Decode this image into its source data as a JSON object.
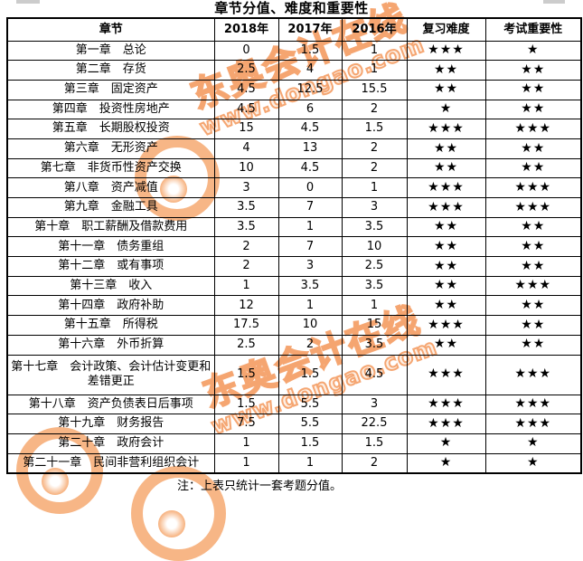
{
  "title": "章节分值、难度和重要性",
  "note": "注：上表只统计一套考题分值。",
  "watermark": {
    "brand": "东奥会计在线",
    "site": "www.dongao.com",
    "color": "#f5a468"
  },
  "table": {
    "headers": [
      "章节",
      "2018年",
      "2017年",
      "2016年",
      "复习难度",
      "考试重要性"
    ],
    "star_char": "★",
    "rows": [
      {
        "chapter": "第一章　总论",
        "y2018": "0",
        "y2017": "1.5",
        "y2016": "1",
        "difficulty": 3,
        "importance": 1
      },
      {
        "chapter": "第二章　存货",
        "y2018": "2.5",
        "y2017": "4",
        "y2016": "1",
        "difficulty": 2,
        "importance": 2
      },
      {
        "chapter": "第三章　固定资产",
        "y2018": "4.5",
        "y2017": "12.5",
        "y2016": "15.5",
        "difficulty": 2,
        "importance": 2
      },
      {
        "chapter": "第四章　投资性房地产",
        "y2018": "4.5",
        "y2017": "6",
        "y2016": "2",
        "difficulty": 1,
        "importance": 2
      },
      {
        "chapter": "第五章　长期股权投资",
        "y2018": "15",
        "y2017": "4.5",
        "y2016": "1.5",
        "difficulty": 3,
        "importance": 3
      },
      {
        "chapter": "第六章　无形资产",
        "y2018": "4",
        "y2017": "13",
        "y2016": "2",
        "difficulty": 2,
        "importance": 2
      },
      {
        "chapter": "第七章　非货币性资产交换",
        "y2018": "10",
        "y2017": "4.5",
        "y2016": "2",
        "difficulty": 2,
        "importance": 2
      },
      {
        "chapter": "第八章　资产减值",
        "y2018": "3",
        "y2017": "0",
        "y2016": "1",
        "difficulty": 3,
        "importance": 3
      },
      {
        "chapter": "第九章　金融工具",
        "y2018": "3.5",
        "y2017": "7",
        "y2016": "3",
        "difficulty": 3,
        "importance": 3
      },
      {
        "chapter": "第十章　职工薪酬及借款费用",
        "y2018": "3.5",
        "y2017": "1",
        "y2016": "3.5",
        "difficulty": 2,
        "importance": 2
      },
      {
        "chapter": "第十一章　债务重组",
        "y2018": "2",
        "y2017": "7",
        "y2016": "10",
        "difficulty": 2,
        "importance": 2
      },
      {
        "chapter": "第十二章　或有事项",
        "y2018": "2",
        "y2017": "3",
        "y2016": "2.5",
        "difficulty": 2,
        "importance": 2
      },
      {
        "chapter": "第十三章　收入",
        "y2018": "1",
        "y2017": "3.5",
        "y2016": "3.5",
        "difficulty": 2,
        "importance": 3
      },
      {
        "chapter": "第十四章　政府补助",
        "y2018": "12",
        "y2017": "1",
        "y2016": "1",
        "difficulty": 2,
        "importance": 2
      },
      {
        "chapter": "第十五章　所得税",
        "y2018": "17.5",
        "y2017": "10",
        "y2016": "15",
        "difficulty": 3,
        "importance": 2
      },
      {
        "chapter": "第十六章　外币折算",
        "y2018": "2.5",
        "y2017": "2",
        "y2016": "3.5",
        "difficulty": 2,
        "importance": 2
      },
      {
        "chapter": "第十七章　会计政策、会计估计变更和差错更正",
        "y2018": "1.5",
        "y2017": "1.5",
        "y2016": "4.5",
        "difficulty": 3,
        "importance": 3
      },
      {
        "chapter": "第十八章　资产负债表日后事项",
        "y2018": "1.5",
        "y2017": "5.5",
        "y2016": "3",
        "difficulty": 3,
        "importance": 3
      },
      {
        "chapter": "第十九章　财务报告",
        "y2018": "7.5",
        "y2017": "5.5",
        "y2016": "22.5",
        "difficulty": 3,
        "importance": 3
      },
      {
        "chapter": "第二十章　政府会计",
        "y2018": "1",
        "y2017": "1.5",
        "y2016": "1.5",
        "difficulty": 1,
        "importance": 1
      },
      {
        "chapter": "第二十一章　民间非营利组织会计",
        "y2018": "1",
        "y2017": "1",
        "y2016": "2",
        "difficulty": 1,
        "importance": 1
      }
    ]
  }
}
